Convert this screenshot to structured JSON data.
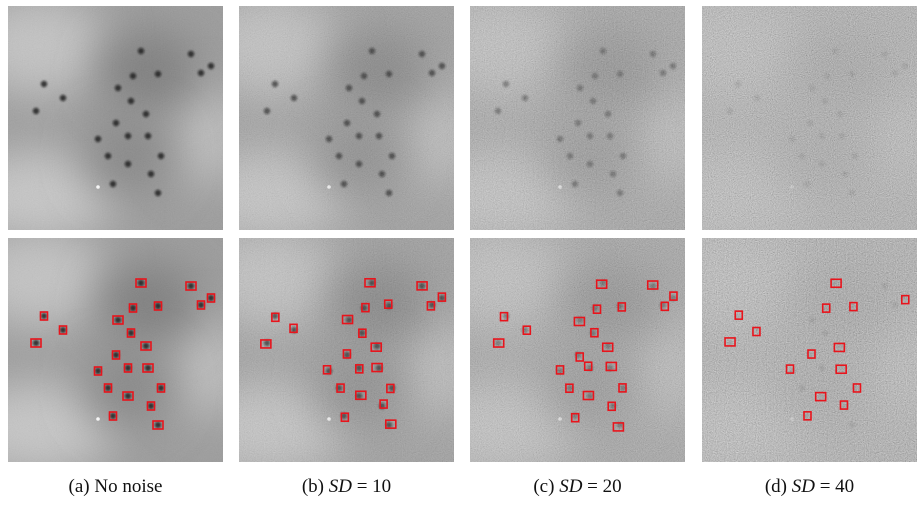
{
  "captions": [
    {
      "label": "(a)",
      "text": "No noise"
    },
    {
      "label": "(b)",
      "variable": "SD",
      "relation": "= 10"
    },
    {
      "label": "(c)",
      "variable": "SD",
      "relation": "= 20"
    },
    {
      "label": "(d)",
      "variable": "SD",
      "relation": "= 40"
    }
  ]
}
